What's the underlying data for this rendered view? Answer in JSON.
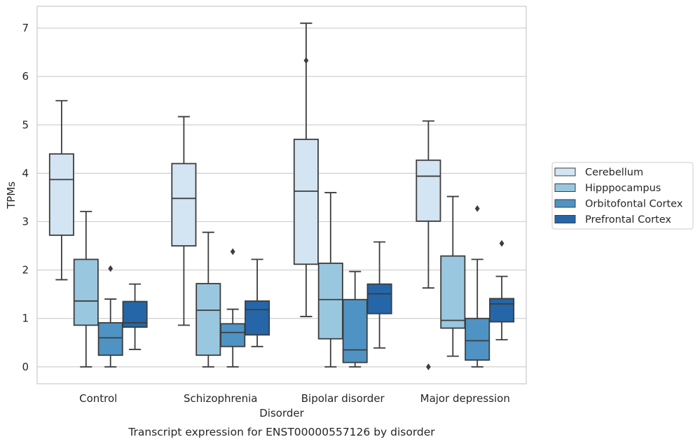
{
  "chart_data": {
    "type": "box",
    "caption": "Transcript expression for ENST00000557126 by disorder",
    "xlabel": "Disorder",
    "ylabel": "TPMs",
    "ylim": [
      -0.35,
      7.45
    ],
    "yticks": [
      0,
      1,
      2,
      3,
      4,
      5,
      6,
      7
    ],
    "grid": true,
    "legend_placement": "right",
    "categories": [
      "Control",
      "Schizophrenia",
      "Bipolar disorder",
      "Major depression"
    ],
    "series": [
      {
        "name": "Cerebellum",
        "color": "#d3e4f3",
        "boxes": [
          {
            "whislo": 1.8,
            "q1": 2.72,
            "med": 3.87,
            "q3": 4.4,
            "whishi": 5.5,
            "fliers": []
          },
          {
            "whislo": 0.86,
            "q1": 2.5,
            "med": 3.48,
            "q3": 4.2,
            "whishi": 5.17,
            "fliers": []
          },
          {
            "whislo": 1.04,
            "q1": 2.12,
            "med": 3.63,
            "q3": 4.7,
            "whishi": 7.1,
            "fliers": [
              6.33
            ]
          },
          {
            "whislo": 1.63,
            "q1": 3.01,
            "med": 3.94,
            "q3": 4.27,
            "whishi": 5.08,
            "fliers": [
              0.0
            ]
          }
        ]
      },
      {
        "name": "Hipppocampus",
        "color": "#9ac7e0",
        "boxes": [
          {
            "whislo": 0.0,
            "q1": 0.86,
            "med": 1.36,
            "q3": 2.22,
            "whishi": 3.21,
            "fliers": []
          },
          {
            "whislo": 0.0,
            "q1": 0.24,
            "med": 1.17,
            "q3": 1.72,
            "whishi": 2.78,
            "fliers": []
          },
          {
            "whislo": 0.0,
            "q1": 0.58,
            "med": 1.39,
            "q3": 2.14,
            "whishi": 3.6,
            "fliers": []
          },
          {
            "whislo": 0.22,
            "q1": 0.8,
            "med": 0.96,
            "q3": 2.29,
            "whishi": 3.52,
            "fliers": []
          }
        ]
      },
      {
        "name": "Orbitofontal Cortex",
        "color": "#4f93c4",
        "boxes": [
          {
            "whislo": 0.0,
            "q1": 0.24,
            "med": 0.6,
            "q3": 0.91,
            "whishi": 1.4,
            "fliers": [
              2.03
            ]
          },
          {
            "whislo": 0.0,
            "q1": 0.42,
            "med": 0.71,
            "q3": 0.89,
            "whishi": 1.19,
            "fliers": [
              2.38
            ]
          },
          {
            "whislo": 0.0,
            "q1": 0.09,
            "med": 0.35,
            "q3": 1.39,
            "whishi": 1.97,
            "fliers": []
          },
          {
            "whislo": 0.0,
            "q1": 0.14,
            "med": 0.54,
            "q3": 1.0,
            "whishi": 2.22,
            "fliers": [
              3.27
            ]
          }
        ]
      },
      {
        "name": "Prefrontal Cortex",
        "color": "#2566a9",
        "boxes": [
          {
            "whislo": 0.36,
            "q1": 0.82,
            "med": 0.91,
            "q3": 1.35,
            "whishi": 1.71,
            "fliers": []
          },
          {
            "whislo": 0.42,
            "q1": 0.66,
            "med": 1.18,
            "q3": 1.36,
            "whishi": 2.22,
            "fliers": []
          },
          {
            "whislo": 0.39,
            "q1": 1.1,
            "med": 1.51,
            "q3": 1.71,
            "whishi": 2.58,
            "fliers": []
          },
          {
            "whislo": 0.56,
            "q1": 0.93,
            "med": 1.3,
            "q3": 1.41,
            "whishi": 1.87,
            "fliers": [
              2.55
            ]
          }
        ]
      }
    ]
  }
}
